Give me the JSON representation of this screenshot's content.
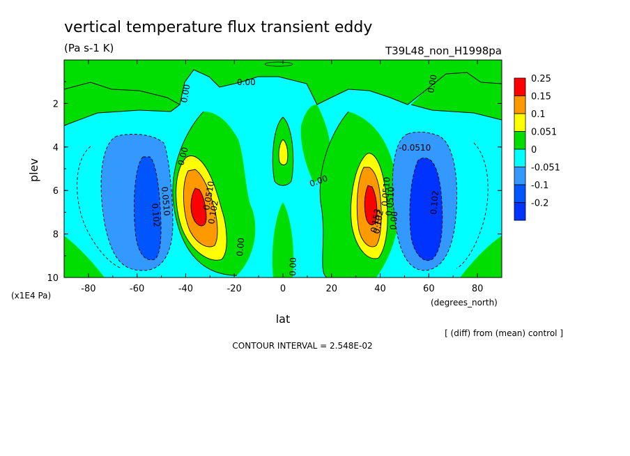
{
  "chart_data": {
    "type": "contour",
    "title": "vertical temperature flux transient eddy",
    "units": "(Pa s-1 K)",
    "dataset": "T39L48_non_H1998pa",
    "xlabel": "lat",
    "xunits": "(degrees_north)",
    "ylabel": "plev",
    "yunits": "(x1E4 Pa)",
    "xlim": [
      -90,
      90
    ],
    "ylim": [
      10,
      0
    ],
    "xticks": [
      "-80",
      "-60",
      "-40",
      "-20",
      "0",
      "20",
      "40",
      "60",
      "80"
    ],
    "xtick_values": [
      -80,
      -60,
      -40,
      -20,
      0,
      20,
      40,
      60,
      80
    ],
    "yticks": [
      "2",
      "4",
      "6",
      "8",
      "10"
    ],
    "ytick_values": [
      2,
      4,
      6,
      8,
      10
    ],
    "note": "[ (diff) from (mean) control ]",
    "contour_interval": "CONTOUR INTERVAL = 2.548E-02",
    "legend": {
      "labels": [
        "0.25",
        "0.15",
        "0.1",
        "0.051",
        "0",
        "-0.051",
        "-0.1",
        "-0.2"
      ],
      "colors": [
        "#ff0000",
        "#ff9900",
        "#ffff00",
        "#00dd00",
        "#00ffff",
        "#3399ff",
        "#0055ff",
        "#0033ff"
      ]
    },
    "contour_labels": [
      "0.00",
      "0.00",
      "0.00",
      "0.00",
      "0.00",
      "0.00",
      "0.00",
      "0.00",
      "-0.0510",
      "0.102",
      "0.102",
      "0.102",
      "0.102",
      "0.0510",
      "0.0510",
      "0.0510",
      "0.153",
      "0.0510"
    ],
    "features": [
      {
        "kind": "positive",
        "lat": -35,
        "plev": 6.7,
        "peak": 0.25
      },
      {
        "kind": "positive",
        "lat": 35,
        "plev": 6.8,
        "peak": 0.25
      },
      {
        "kind": "negative",
        "lat": -55,
        "plev": 6.8,
        "peak": -0.15
      },
      {
        "kind": "negative",
        "lat": 55,
        "plev": 6.8,
        "peak": -0.2
      },
      {
        "kind": "positive",
        "lat": 0,
        "plev": 4.2,
        "peak": 0.1
      }
    ]
  }
}
